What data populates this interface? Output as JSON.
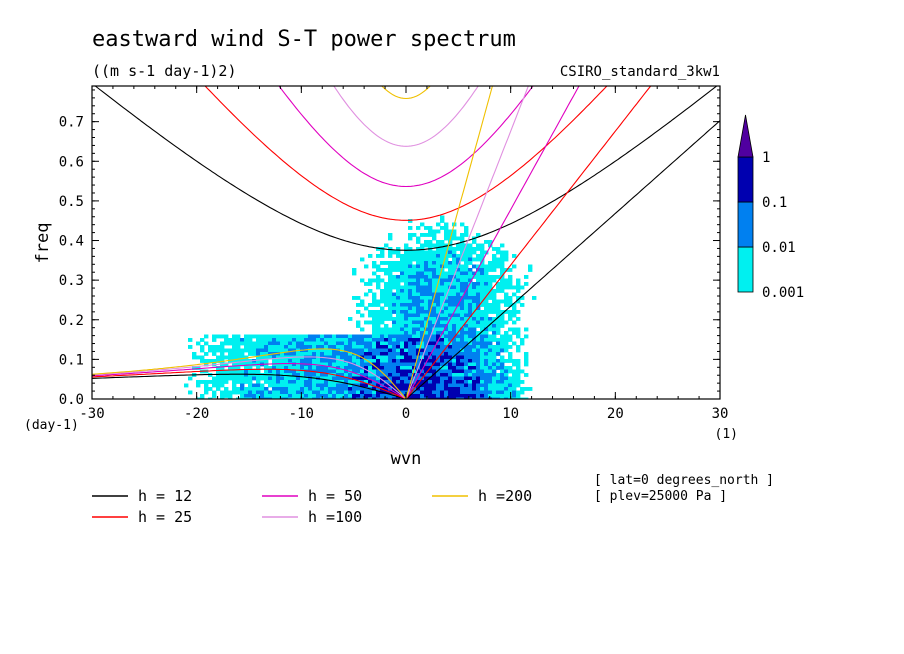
{
  "chart_data": {
    "type": "heatmap",
    "title": "eastward wind S-T power spectrum",
    "subtitle": "((m s-1 day-1)2)",
    "model": "CSIRO_standard_3kw1",
    "xlabel": "wvn",
    "x_unit_label": "(1)",
    "ylabel": "freq",
    "y_unit_label": "(day-1)",
    "xlim": [
      -30,
      30
    ],
    "ylim": [
      0,
      0.79
    ],
    "x_ticks": [
      "-30",
      "-20",
      "-10",
      "0",
      "10",
      "20",
      "30"
    ],
    "y_ticks": [
      "0.0",
      "0.1",
      "0.2",
      "0.3",
      "0.4",
      "0.5",
      "0.6",
      "0.7"
    ],
    "colorbar": {
      "levels": [
        "0.001",
        "0.01",
        "0.1",
        "1"
      ],
      "colors": [
        "#00f0f0",
        "#0080f0",
        "#0000b0",
        "#5000a0"
      ]
    },
    "dispersion_curves": [
      {
        "name": "h = 12",
        "h": 12,
        "color": "#000000"
      },
      {
        "name": "h = 25",
        "h": 25,
        "color": "#ff0000"
      },
      {
        "name": "h = 50",
        "h": 50,
        "color": "#e000c0"
      },
      {
        "name": "h =100",
        "h": 100,
        "color": "#e090e0"
      },
      {
        "name": "h =200",
        "h": 200,
        "color": "#f0c000"
      }
    ],
    "annotations": [
      "[ lat=0 degrees_north ]",
      "[ plev=25000 Pa ]"
    ]
  }
}
